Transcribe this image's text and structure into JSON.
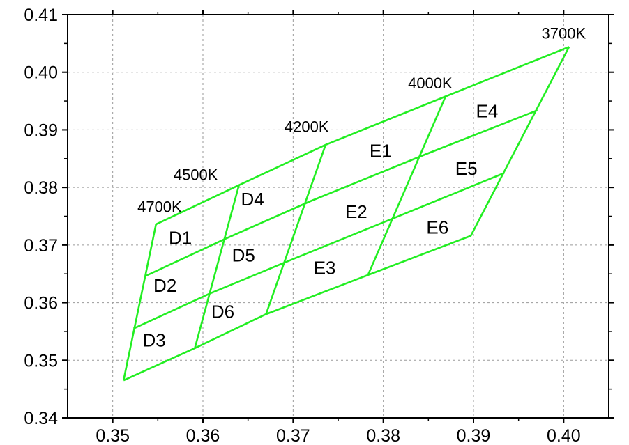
{
  "chart_data": {
    "type": "line",
    "title": "",
    "xlabel": "",
    "ylabel": "",
    "xlim": [
      0.345,
      0.405
    ],
    "ylim": [
      0.34,
      0.41
    ],
    "x_ticks": [
      0.35,
      0.36,
      0.37,
      0.38,
      0.39,
      0.4
    ],
    "x_tick_labels": [
      "0.35",
      "0.36",
      "0.37",
      "0.38",
      "0.39",
      "0.40"
    ],
    "y_ticks": [
      0.34,
      0.35,
      0.36,
      0.37,
      0.38,
      0.39,
      0.4,
      0.41
    ],
    "y_tick_labels": [
      "0.34",
      "0.35",
      "0.36",
      "0.37",
      "0.38",
      "0.39",
      "0.40",
      "0.41"
    ],
    "grid": true,
    "line_color": "#22ee22",
    "boundary_lines": [
      {
        "points": [
          [
            0.3548,
            0.3736
          ],
          [
            0.364,
            0.3804
          ],
          [
            0.3736,
            0.3874
          ],
          [
            0.3869,
            0.3958
          ],
          [
            0.4006,
            0.4044
          ]
        ]
      },
      {
        "points": [
          [
            0.3536,
            0.3646
          ],
          [
            0.3625,
            0.3711
          ],
          [
            0.3719,
            0.3776
          ],
          [
            0.3846,
            0.3857
          ],
          [
            0.3971,
            0.3934
          ]
        ]
      },
      {
        "points": [
          [
            0.3523,
            0.3555
          ],
          [
            0.3608,
            0.3616
          ],
          [
            0.3702,
            0.3677
          ],
          [
            0.382,
            0.3752
          ],
          [
            0.3934,
            0.3825
          ]
        ]
      },
      {
        "points": [
          [
            0.3512,
            0.3465
          ],
          [
            0.3591,
            0.3521
          ],
          [
            0.367,
            0.358
          ],
          [
            0.3783,
            0.3648
          ],
          [
            0.3897,
            0.3716
          ]
        ]
      },
      {
        "points": [
          [
            0.3548,
            0.3736
          ],
          [
            0.3512,
            0.3465
          ]
        ]
      },
      {
        "points": [
          [
            0.364,
            0.3804
          ],
          [
            0.3591,
            0.3521
          ]
        ]
      },
      {
        "points": [
          [
            0.3736,
            0.3874
          ],
          [
            0.367,
            0.358
          ]
        ]
      },
      {
        "points": [
          [
            0.3869,
            0.3958
          ],
          [
            0.3783,
            0.3648
          ]
        ]
      },
      {
        "points": [
          [
            0.4006,
            0.4044
          ],
          [
            0.3897,
            0.3716
          ]
        ]
      }
    ],
    "cct_labels": [
      {
        "text": "4700K",
        "x": 0.3552,
        "y": 0.3757
      },
      {
        "text": "4500K",
        "x": 0.3592,
        "y": 0.3813
      },
      {
        "text": "4200K",
        "x": 0.3715,
        "y": 0.3896
      },
      {
        "text": "4000K",
        "x": 0.3852,
        "y": 0.3972
      },
      {
        "text": "3700K",
        "x": 0.4,
        "y": 0.4058
      }
    ],
    "bin_labels": [
      {
        "text": "D1",
        "x": 0.3575,
        "y": 0.371
      },
      {
        "text": "D2",
        "x": 0.3558,
        "y": 0.3627
      },
      {
        "text": "D3",
        "x": 0.3546,
        "y": 0.3532
      },
      {
        "text": "D4",
        "x": 0.3655,
        "y": 0.3777
      },
      {
        "text": "D5",
        "x": 0.3645,
        "y": 0.368
      },
      {
        "text": "D6",
        "x": 0.3622,
        "y": 0.3582
      },
      {
        "text": "E1",
        "x": 0.3797,
        "y": 0.3861
      },
      {
        "text": "E2",
        "x": 0.377,
        "y": 0.3755
      },
      {
        "text": "E3",
        "x": 0.3735,
        "y": 0.3658
      },
      {
        "text": "E4",
        "x": 0.3915,
        "y": 0.393
      },
      {
        "text": "E5",
        "x": 0.3892,
        "y": 0.383
      },
      {
        "text": "E6",
        "x": 0.386,
        "y": 0.3728
      }
    ]
  }
}
